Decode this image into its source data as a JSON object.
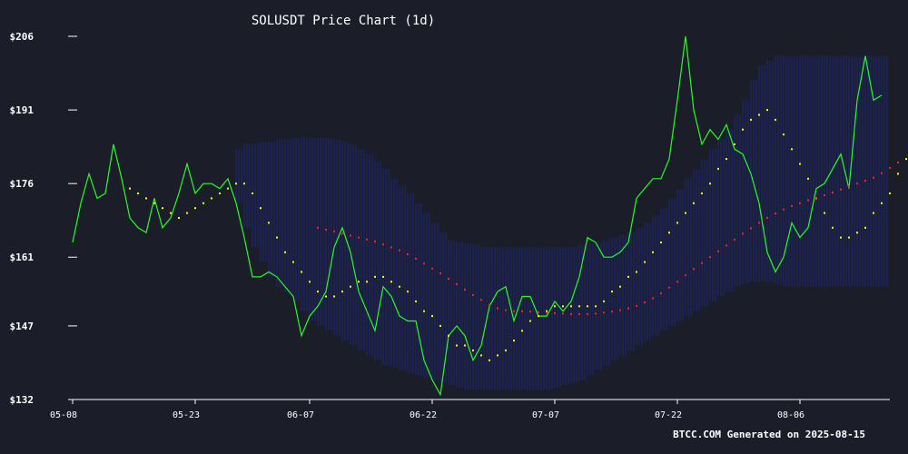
{
  "page": {
    "footer": "BTCC.COM Generated on 2025-08-15"
  },
  "colors": {
    "background": "#1b1e29",
    "price_line": "#22ff22",
    "short_ma": "#ffff00",
    "long_ma": "#ff2222",
    "band": "#1f2bb0",
    "axis": "#ffffff"
  },
  "chart_data": {
    "type": "line",
    "title": "SOLUSDT Price Chart (1d)",
    "xlabel": "",
    "ylabel": "",
    "x_start": "2025-05-08",
    "ylim": [
      132,
      206
    ],
    "yticks": [
      132,
      147,
      161,
      176,
      191,
      206
    ],
    "ytick_labels": [
      "$132",
      "$147",
      "$161",
      "$176",
      "$191",
      "$206"
    ],
    "xticks": [
      0,
      15,
      29,
      44,
      59,
      74,
      89
    ],
    "xtick_labels": [
      "05-08",
      "05-23",
      "06-07",
      "06-22",
      "07-07",
      "07-22",
      "08-06"
    ],
    "grid": false,
    "series": [
      {
        "style": "line",
        "color": "#22ff22",
        "x_start": 0,
        "values": [
          164,
          172,
          178,
          173,
          174,
          184,
          177,
          169,
          167,
          166,
          173,
          167,
          169,
          174,
          180,
          174,
          176,
          176,
          175,
          177,
          172,
          165,
          157,
          157,
          158,
          157,
          155,
          153,
          145,
          149,
          151,
          154,
          163,
          167,
          162,
          154,
          150,
          146,
          155,
          153,
          149,
          148,
          148,
          140,
          136,
          133,
          145,
          147,
          145,
          140,
          143,
          151,
          154,
          155,
          148,
          153,
          153,
          149,
          149,
          152,
          150,
          152,
          157,
          165,
          164,
          161,
          161,
          162,
          164,
          173,
          175,
          177,
          177,
          181,
          193,
          206,
          191,
          184,
          187,
          185,
          188,
          183,
          182,
          178,
          172,
          162,
          158,
          161,
          168,
          165,
          167,
          175,
          176,
          179,
          182,
          175,
          193,
          202,
          193,
          194
        ]
      },
      {
        "style": "dots",
        "color": "#ffff00",
        "x_start": 7,
        "values": [
          175,
          174,
          173,
          172,
          171,
          170,
          169,
          170,
          171,
          172,
          173,
          174,
          175,
          176,
          176,
          174,
          171,
          168,
          165,
          162,
          160,
          158,
          156,
          154,
          153,
          153,
          154,
          155,
          156,
          156,
          157,
          157,
          156,
          155,
          154,
          152,
          150,
          149,
          147,
          145,
          143,
          143,
          142,
          141,
          140,
          141,
          142,
          144,
          146,
          148,
          149,
          150,
          151,
          151,
          151,
          151,
          151,
          151,
          152,
          154,
          155,
          157,
          158,
          160,
          162,
          164,
          166,
          168,
          170,
          172,
          174,
          176,
          179,
          181,
          184,
          187,
          189,
          190,
          191,
          189,
          186,
          183,
          180,
          177,
          173,
          170,
          167,
          165,
          165,
          166,
          167,
          170,
          172,
          174,
          178,
          181,
          184,
          187
        ]
      },
      {
        "style": "dots",
        "color": "#ff2222",
        "x_start": 30,
        "values": [
          167,
          166.6,
          166.2,
          165.8,
          165.4,
          165,
          164.6,
          164.2,
          163.6,
          163,
          162.4,
          161.6,
          160.7,
          159.7,
          158.7,
          157.7,
          156.6,
          155.5,
          154.4,
          153.3,
          152.3,
          151.3,
          150.6,
          150.2,
          150,
          150,
          149.9,
          149.8,
          149.7,
          149.6,
          149.5,
          149.4,
          149.4,
          149.4,
          149.5,
          149.7,
          149.9,
          150.2,
          150.6,
          151.1,
          151.8,
          152.6,
          153.6,
          154.8,
          156,
          157.3,
          158.6,
          159.8,
          161,
          162.2,
          163.4,
          164.6,
          165.8,
          166.9,
          168,
          169,
          169.9,
          170.7,
          171.4,
          172,
          172.6,
          173.1,
          173.6,
          174.2,
          174.8,
          175.4,
          176,
          176.6,
          177.2,
          178.1,
          179.2,
          180.3
        ]
      }
    ],
    "band": {
      "color": "#1f2bb0",
      "x_start": 20,
      "upper": [
        183,
        184,
        184,
        184.5,
        184.5,
        185,
        185,
        185.3,
        185.5,
        185.4,
        185.3,
        185.2,
        185,
        184.5,
        184,
        183,
        182,
        180.5,
        179,
        177,
        175.5,
        174,
        172,
        170,
        168,
        166,
        164.5,
        164,
        163.8,
        163.5,
        163.2,
        163,
        163,
        163,
        163,
        163,
        163,
        163,
        163,
        163,
        163,
        163.2,
        163.5,
        163.8,
        164,
        164.5,
        165,
        165.5,
        166,
        167,
        168,
        169.5,
        171,
        173,
        175,
        177,
        179,
        181,
        183,
        185,
        187,
        190,
        193,
        197,
        200,
        201,
        202,
        202,
        202,
        202,
        202,
        202,
        202,
        202,
        202,
        202,
        202,
        202,
        202,
        202
      ],
      "lower": [
        172,
        167,
        163,
        160,
        157,
        155,
        154,
        152,
        150,
        148,
        147,
        146,
        145,
        144,
        143,
        142,
        141,
        140,
        139,
        138.5,
        138,
        137.5,
        137,
        136.5,
        136,
        135.5,
        135,
        134.5,
        134,
        134,
        134,
        134,
        134,
        134,
        134,
        134,
        134,
        134,
        134,
        134.5,
        135,
        135.5,
        136,
        137,
        138,
        139,
        140,
        141,
        142,
        143,
        144,
        145,
        146,
        147,
        148,
        149,
        150,
        151,
        152,
        153,
        154,
        155,
        155.5,
        156,
        156,
        156,
        155.5,
        155,
        155,
        155,
        155,
        155,
        155,
        155,
        155,
        155,
        155,
        155,
        155,
        155
      ]
    }
  }
}
